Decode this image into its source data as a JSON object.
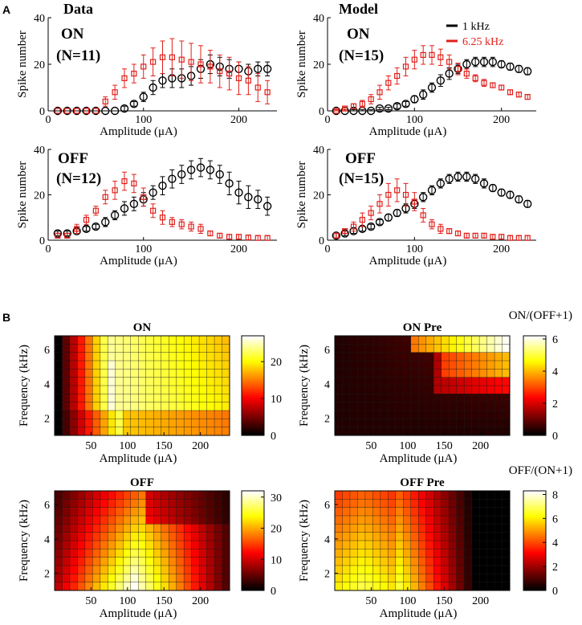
{
  "panel_labels": {
    "a": "A",
    "b": "B"
  },
  "headers": {
    "data": "Data",
    "model": "Model"
  },
  "colors": {
    "black": "#000000",
    "red": "#e0201b"
  },
  "legend": {
    "black": "1 kHz",
    "red": "6.25 kHz"
  },
  "chart_data": [
    {
      "id": "data-on",
      "type": "scatter",
      "ylabel": "Spike number",
      "xlabel": "Amplitude  (μA)",
      "label": "ON",
      "n_label": "(N=11)",
      "xlim": [
        0,
        240
      ],
      "ylim": [
        0,
        40
      ],
      "xticks": [
        0,
        100,
        200
      ],
      "yticks": [
        0,
        20,
        40
      ],
      "series": [
        {
          "name": "1 kHz",
          "marker": "circle",
          "x": [
            10,
            20,
            30,
            40,
            50,
            60,
            70,
            80,
            90,
            100,
            110,
            120,
            130,
            140,
            150,
            160,
            170,
            180,
            190,
            200,
            210,
            220,
            230
          ],
          "y": [
            0,
            0,
            0,
            0,
            0,
            0,
            0,
            1,
            3,
            6,
            10,
            13,
            14,
            14,
            15,
            18,
            20,
            19,
            18,
            18,
            17,
            18,
            18
          ],
          "err": [
            0,
            0,
            0,
            0,
            0,
            0,
            0,
            1,
            1,
            2,
            3,
            3,
            4,
            4,
            4,
            4,
            4,
            4,
            4,
            3,
            3,
            3,
            3
          ]
        },
        {
          "name": "6.25 kHz",
          "marker": "square",
          "x": [
            10,
            20,
            30,
            40,
            50,
            60,
            70,
            80,
            90,
            100,
            110,
            120,
            130,
            140,
            150,
            160,
            170,
            180,
            190,
            200,
            210,
            220,
            230
          ],
          "y": [
            0,
            0,
            0,
            0,
            0,
            4,
            8,
            14,
            16,
            19,
            21,
            23,
            23,
            22,
            21,
            20,
            19,
            17,
            16,
            14,
            13,
            10,
            8
          ],
          "err": [
            0,
            0,
            0,
            0,
            0,
            2,
            3,
            4,
            4,
            5,
            6,
            7,
            8,
            8,
            8,
            8,
            7,
            7,
            7,
            7,
            6,
            6,
            5
          ]
        }
      ]
    },
    {
      "id": "model-on",
      "type": "scatter",
      "ylabel": "Spike number",
      "xlabel": "Amplitude  (μA)",
      "label": "ON",
      "n_label": "(N=15)",
      "xlim": [
        0,
        240
      ],
      "ylim": [
        0,
        40
      ],
      "xticks": [
        0,
        100,
        200
      ],
      "yticks": [
        0,
        20,
        40
      ],
      "legend": true,
      "series": [
        {
          "name": "1 kHz",
          "marker": "circle",
          "x": [
            10,
            20,
            30,
            40,
            50,
            60,
            70,
            80,
            90,
            100,
            110,
            120,
            130,
            140,
            150,
            160,
            170,
            180,
            190,
            200,
            210,
            220,
            230
          ],
          "y": [
            0,
            0,
            0,
            0,
            0,
            1,
            1,
            2,
            3,
            5,
            7,
            10,
            13,
            16,
            18,
            20,
            21,
            21,
            21,
            20,
            19,
            18,
            17
          ],
          "err": [
            0.5,
            0.5,
            0.5,
            0.5,
            0.5,
            0.5,
            0.5,
            1,
            1,
            1.5,
            2,
            2,
            2.5,
            2.5,
            2,
            2,
            2,
            2,
            2,
            1.5,
            1.5,
            1.5,
            1.5
          ]
        },
        {
          "name": "6.25 kHz",
          "marker": "square",
          "x": [
            10,
            20,
            30,
            40,
            50,
            60,
            70,
            80,
            90,
            100,
            110,
            120,
            130,
            140,
            150,
            160,
            170,
            180,
            190,
            200,
            210,
            220,
            230
          ],
          "y": [
            0,
            1,
            2,
            3,
            5,
            8,
            12,
            15,
            19,
            22,
            24,
            24,
            23,
            21,
            18,
            16,
            14,
            12,
            11,
            10,
            8,
            7,
            6
          ],
          "err": [
            0.5,
            0.5,
            1,
            1.5,
            2,
            3,
            3,
            3.5,
            4,
            4,
            4,
            4,
            3.5,
            3,
            2.5,
            2,
            1.5,
            1.5,
            1,
            1,
            1,
            1,
            1
          ]
        }
      ]
    },
    {
      "id": "data-off",
      "type": "scatter",
      "ylabel": "Spike number",
      "xlabel": "Amplitude  (μA)",
      "label": "OFF",
      "n_label": "(N=12)",
      "xlim": [
        0,
        240
      ],
      "ylim": [
        0,
        40
      ],
      "xticks": [
        0,
        100,
        200
      ],
      "yticks": [
        0,
        20,
        40
      ],
      "series": [
        {
          "name": "1 kHz",
          "marker": "circle",
          "x": [
            10,
            20,
            30,
            40,
            50,
            60,
            70,
            80,
            90,
            100,
            110,
            120,
            130,
            140,
            150,
            160,
            170,
            180,
            190,
            200,
            210,
            220,
            230
          ],
          "y": [
            3,
            3,
            4,
            5,
            6,
            8,
            11,
            14,
            16,
            18,
            21,
            24,
            27,
            29,
            31,
            32,
            31,
            29,
            25,
            21,
            19,
            18,
            15
          ],
          "err": [
            1,
            1,
            1,
            1,
            1,
            2,
            2,
            3,
            3,
            3,
            3,
            4,
            4,
            4,
            4,
            4,
            4,
            4,
            5,
            5,
            5,
            4,
            4
          ]
        },
        {
          "name": "6.25 kHz",
          "marker": "square",
          "x": [
            10,
            20,
            30,
            40,
            50,
            60,
            70,
            80,
            90,
            100,
            110,
            120,
            130,
            140,
            150,
            160,
            170,
            180,
            190,
            200,
            210,
            220,
            230
          ],
          "y": [
            2,
            2,
            5,
            9,
            13,
            19,
            22,
            26,
            25,
            19,
            13,
            10,
            8,
            7,
            6,
            5,
            3,
            2,
            1.5,
            1.5,
            1.2,
            1,
            1
          ],
          "err": [
            1,
            1,
            2,
            2,
            2,
            3,
            4,
            4,
            4,
            4,
            3,
            3,
            2,
            2,
            2,
            2,
            1,
            1,
            1,
            1,
            1,
            1,
            1
          ]
        }
      ]
    },
    {
      "id": "model-off",
      "type": "scatter",
      "ylabel": "Spike number",
      "xlabel": "Amplitude  (μA)",
      "label": "OFF",
      "n_label": "(N=15)",
      "xlim": [
        0,
        240
      ],
      "ylim": [
        0,
        40
      ],
      "xticks": [
        0,
        100,
        200
      ],
      "yticks": [
        0,
        20,
        40
      ],
      "series": [
        {
          "name": "1 kHz",
          "marker": "circle",
          "x": [
            10,
            20,
            30,
            40,
            50,
            60,
            70,
            80,
            90,
            100,
            110,
            120,
            130,
            140,
            150,
            160,
            170,
            180,
            190,
            200,
            210,
            220,
            230
          ],
          "y": [
            2,
            3,
            4,
            5,
            6,
            8,
            10,
            12,
            14,
            16,
            19,
            22,
            25,
            27,
            28,
            28,
            27,
            25,
            23,
            21,
            20,
            18,
            16
          ],
          "err": [
            1,
            1,
            1,
            1,
            1,
            1,
            1.5,
            1.5,
            2,
            2,
            2,
            2,
            2,
            2,
            2,
            2,
            2,
            2,
            1.5,
            1.5,
            1.5,
            1.5,
            1.5
          ]
        },
        {
          "name": "6.25 kHz",
          "marker": "square",
          "x": [
            10,
            20,
            30,
            40,
            50,
            60,
            70,
            80,
            90,
            100,
            110,
            120,
            130,
            140,
            150,
            160,
            170,
            180,
            190,
            200,
            210,
            220,
            230
          ],
          "y": [
            2,
            4,
            6,
            9,
            12,
            16,
            20,
            22,
            20,
            17,
            11,
            7,
            5,
            4,
            3,
            2,
            2,
            2,
            1.5,
            1.5,
            1,
            1,
            1
          ],
          "err": [
            1,
            1,
            2,
            3,
            3,
            4,
            5,
            5,
            5,
            4,
            3,
            2,
            2,
            1,
            1,
            1,
            1,
            1,
            1,
            1,
            1,
            1,
            1
          ]
        }
      ]
    },
    {
      "id": "heat-on",
      "type": "heatmap",
      "title": "ON",
      "xlabel": "Amplitude  (μA)",
      "ylabel": "Frequency  (kHz)",
      "xticks": [
        50,
        100,
        150,
        200
      ],
      "yticks": [
        2,
        4,
        6
      ],
      "xlim": [
        0,
        240
      ],
      "ylim": [
        1,
        6.8
      ],
      "colorbar_ticks": [
        0,
        10,
        20
      ],
      "colorbar_max": 27,
      "cols_x": [
        10,
        20,
        30,
        40,
        50,
        60,
        70,
        80,
        90,
        100,
        110,
        120,
        130,
        140,
        150,
        160,
        170,
        180,
        190,
        200,
        210,
        220,
        230
      ],
      "rows": [
        {
          "freq": 6.25,
          "peak_col": 11,
          "scale": 1.0
        },
        {
          "freq": 5.7,
          "peak_col": 11,
          "scale": 0.98
        },
        {
          "freq": 5.1,
          "peak_col": 12,
          "scale": 0.96
        },
        {
          "freq": 4.6,
          "peak_col": 12,
          "scale": 0.95
        },
        {
          "freq": 4.0,
          "peak_col": 13,
          "scale": 0.92
        },
        {
          "freq": 3.5,
          "peak_col": 13,
          "scale": 0.88
        },
        {
          "freq": 3.0,
          "peak_col": 14,
          "scale": 0.82
        },
        {
          "freq": 2.5,
          "peak_col": 14,
          "scale": 0.78
        },
        {
          "freq": 2.1,
          "peak_col": 15,
          "scale": 0.72
        },
        {
          "freq": 1.7,
          "peak_col": 15,
          "scale": 0.66
        },
        {
          "freq": 1.3,
          "peak_col": 16,
          "scale": 0.6
        },
        {
          "freq": 1.0,
          "peak_col": 16,
          "scale": 0.55
        }
      ]
    },
    {
      "id": "heat-on-pre",
      "type": "heatmap",
      "title": "ON Pre",
      "xlabel": "Amplitude  (μA)",
      "ylabel": "Frequency  (kHz)",
      "xticks": [
        50,
        100,
        150,
        200
      ],
      "yticks": [
        2,
        4,
        6
      ],
      "xlim": [
        0,
        240
      ],
      "ylim": [
        1,
        6.8
      ],
      "colorbar_label": "ON/(OFF+1)",
      "colorbar_ticks": [
        0,
        2,
        4,
        6
      ],
      "colorbar_max": 6.2
    },
    {
      "id": "heat-off",
      "type": "heatmap",
      "title": "OFF",
      "xlabel": "Amplitude  (μA)",
      "ylabel": "Frequency  (kHz)",
      "xticks": [
        50,
        100,
        150,
        200
      ],
      "yticks": [
        2,
        4,
        6
      ],
      "xlim": [
        0,
        240
      ],
      "ylim": [
        1,
        6.8
      ],
      "colorbar_ticks": [
        0,
        10,
        20,
        30
      ],
      "colorbar_max": 32
    },
    {
      "id": "heat-off-pre",
      "type": "heatmap",
      "title": "OFF Pre",
      "xlabel": "Amplitude  (μA)",
      "ylabel": "Frequency  (kHz)",
      "xticks": [
        50,
        100,
        150,
        200
      ],
      "yticks": [
        2,
        4,
        6
      ],
      "xlim": [
        0,
        240
      ],
      "ylim": [
        1,
        6.8
      ],
      "colorbar_label": "OFF/(ON+1)",
      "colorbar_ticks": [
        0,
        2,
        4,
        6,
        8
      ],
      "colorbar_max": 8.3
    }
  ]
}
